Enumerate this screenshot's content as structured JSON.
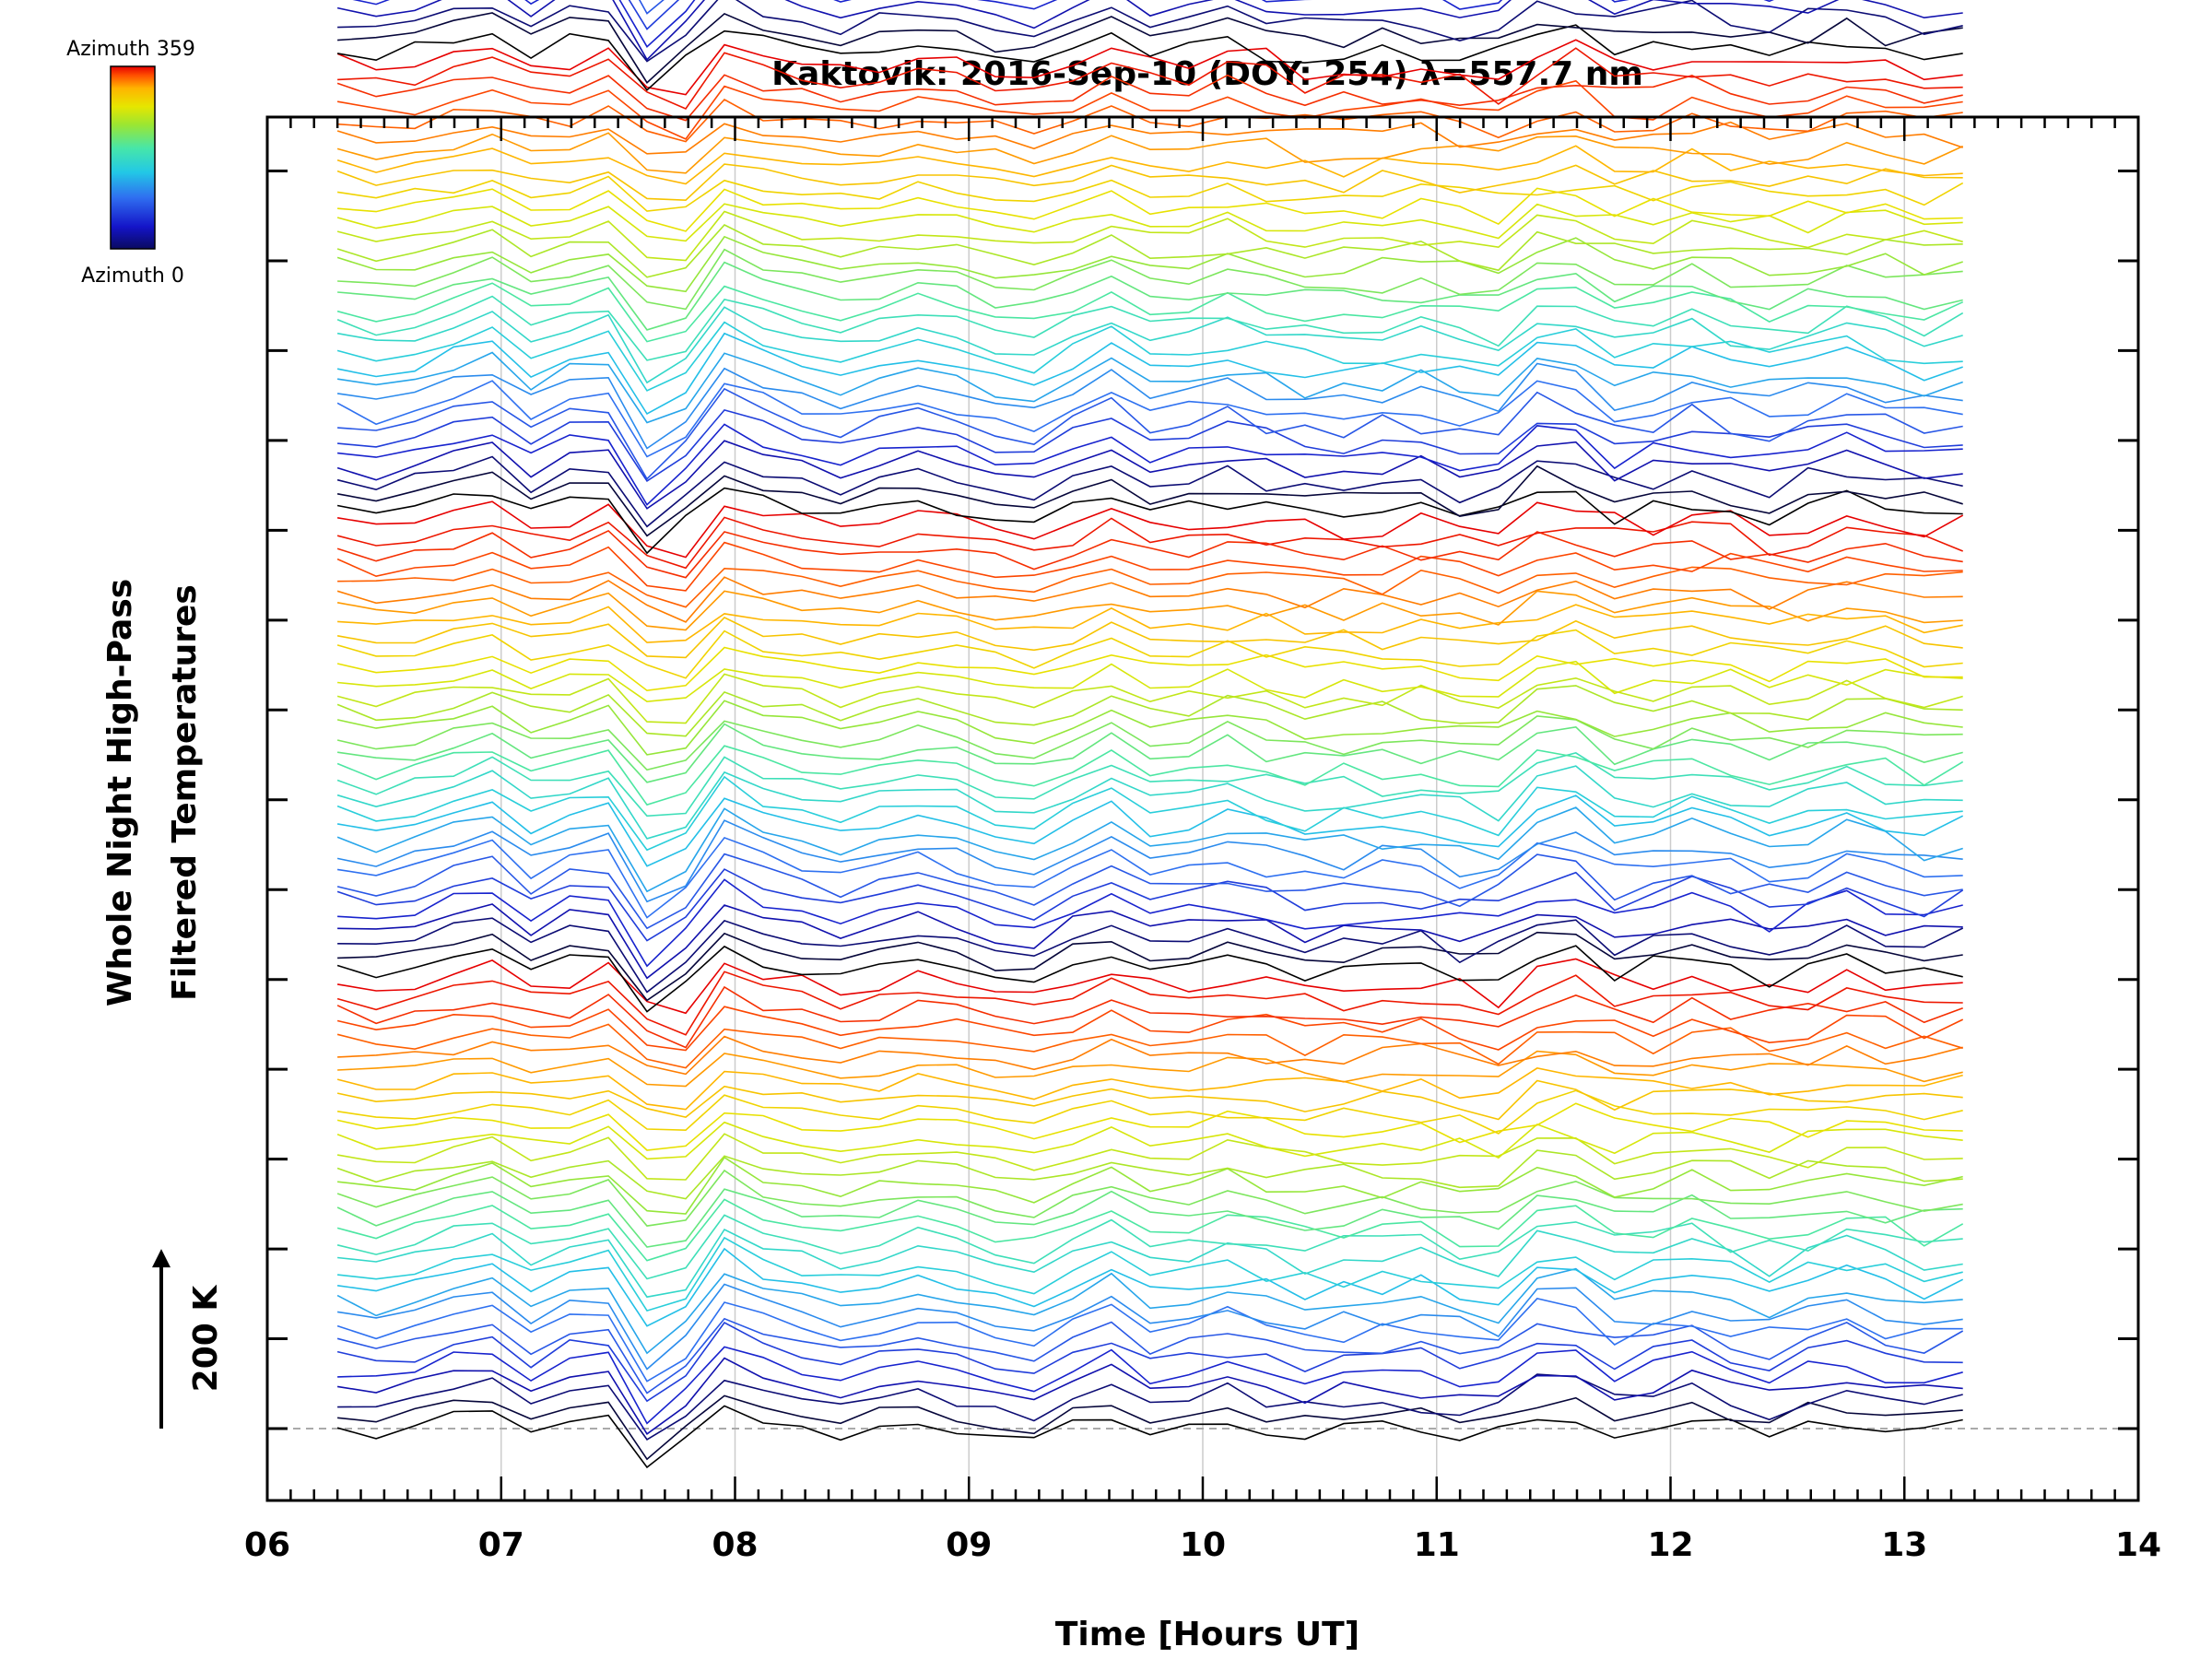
{
  "chart_data": {
    "type": "line",
    "title": "Kaktovik: 2016-Sep-10 (DOY: 254) λ=557.7 nm",
    "xlabel": "Time [Hours UT]",
    "ylabel_line1": "Whole Night High-Pass",
    "ylabel_line2": "Filtered Temperatures",
    "xlim": [
      6,
      14
    ],
    "x_ticks": [
      "06",
      "07",
      "08",
      "09",
      "10",
      "11",
      "12",
      "13",
      "14"
    ],
    "x_gridlines": [
      7,
      8,
      9,
      10,
      11,
      12,
      13
    ],
    "t_start": 6.3,
    "t_end": 13.25,
    "n_points": 43,
    "n_series": 128,
    "series_per_sweep": 32,
    "n_sweeps": 4,
    "offset_per_series_K": 16,
    "baseline_K": 0,
    "ylim_K": [
      -80,
      1460
    ],
    "y_tick_step_K": 100,
    "scale_bar": {
      "label": "200 K",
      "value_K": 200
    },
    "colorbar": {
      "top_label": "Azimuth 359",
      "bottom_label": "Azimuth 0",
      "min_azimuth": 0,
      "max_azimuth": 359
    },
    "colors": {
      "colormap": [
        "#000000",
        "#1414c8",
        "#2f6ef0",
        "#22c8e6",
        "#46e6aa",
        "#9be632",
        "#e6e600",
        "#ffb400",
        "#ff5000",
        "#e60000"
      ],
      "background": "#ffffff",
      "grid": "#cccccc",
      "axis": "#000000"
    },
    "note": "Stacked high-pass filtered temperature traces, one per azimuth (0-359), offset vertically; four repeated azimuth sweeps."
  }
}
